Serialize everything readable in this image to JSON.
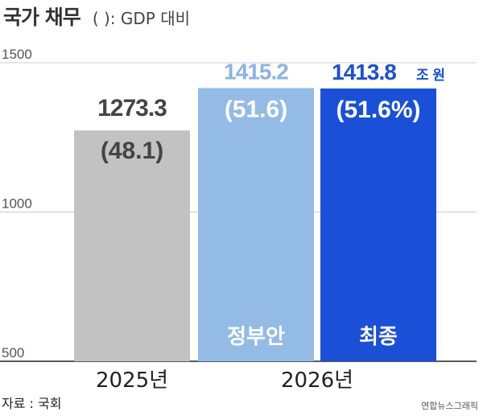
{
  "header": {
    "title": "국가 채무",
    "subtitle": "(   ): GDP 대비"
  },
  "footer": {
    "source": "자료 : 국회",
    "credit": "연합뉴스그래픽"
  },
  "unit": "조 원",
  "colors": {
    "bar_2025": "#c2c2c2",
    "bar_proposal": "#93bbe6",
    "bar_final": "#1a4fd8",
    "label_proposal": "#8ab4e3",
    "label_final": "#1a4fd8",
    "label_2025": "#444444",
    "grid": "#cccccc",
    "axis": "#222222"
  },
  "chart_data": {
    "type": "bar",
    "title": "국가 채무",
    "subtitle": "(   ): GDP 대비",
    "ylim": [
      500,
      1500
    ],
    "yticks": [
      500,
      1000,
      1500
    ],
    "grid": true,
    "bars": [
      {
        "year": "2025년",
        "value": 1273.3,
        "value_label": "1273.3",
        "ratio_label": "(48.1)",
        "bar_label": "",
        "color_key": "bar_2025",
        "label_color_key": "label_2025"
      },
      {
        "year": "2026년",
        "value": 1415.2,
        "value_label": "1415.2",
        "ratio_label": "(51.6)",
        "bar_label": "정부안",
        "color_key": "bar_proposal",
        "label_color_key": "label_proposal"
      },
      {
        "year": "2026년",
        "value": 1413.8,
        "value_label": "1413.8",
        "ratio_label": "(51.6%)",
        "bar_label": "최종",
        "unit": "조 원",
        "color_key": "bar_final",
        "label_color_key": "label_final"
      }
    ],
    "year_labels": [
      "2025년",
      "2026년"
    ]
  }
}
